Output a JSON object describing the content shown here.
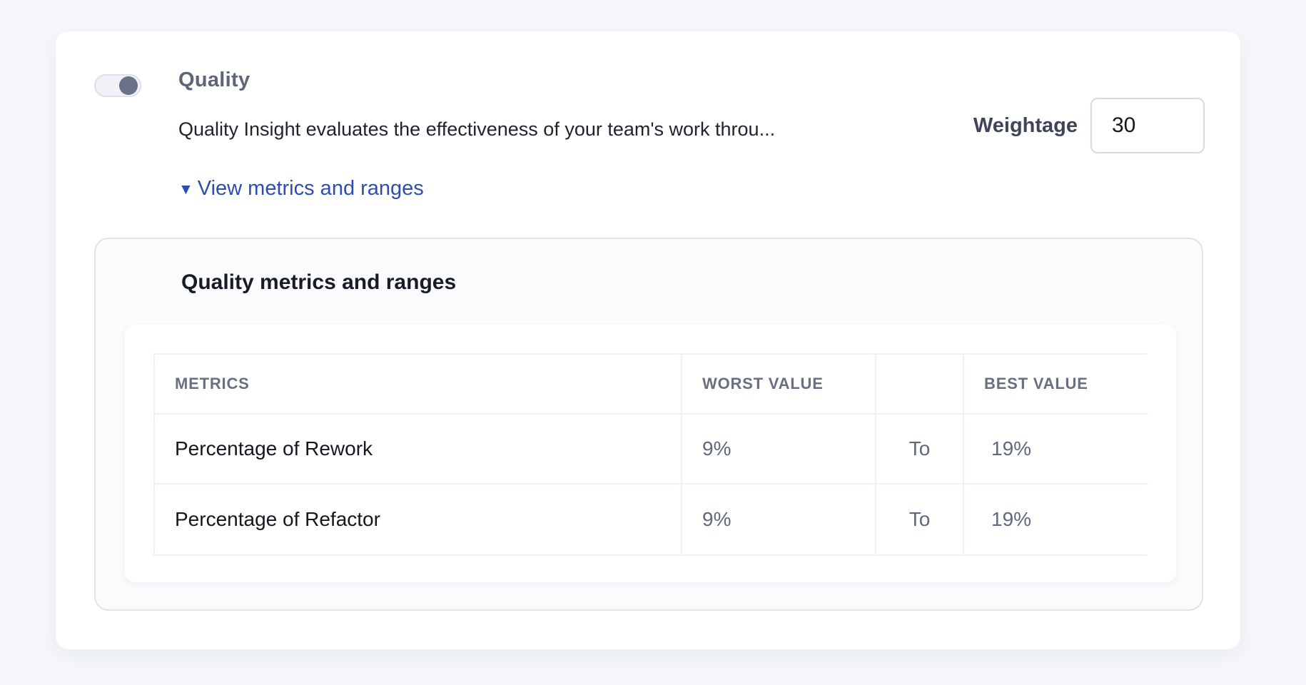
{
  "section": {
    "toggle": {
      "state": "on",
      "knob_color": "#6b7186"
    },
    "title": "Quality",
    "description": "Quality Insight evaluates the effectiveness of your team's work throu...",
    "weightage": {
      "label": "Weightage",
      "value": "30"
    },
    "metrics_link": {
      "icon": "▼",
      "label": "View metrics and ranges",
      "color": "#2c4eb0"
    }
  },
  "metrics_panel": {
    "title": "Quality metrics and ranges",
    "table": {
      "headers": [
        "METRICS",
        "WORST VALUE",
        "",
        "BEST VALUE"
      ],
      "rows": [
        {
          "metric": "Percentage of Rework",
          "worst": "9%",
          "to": "To",
          "best": "19%"
        },
        {
          "metric": "Percentage of Refactor",
          "worst": "9%",
          "to": "To",
          "best": "19%"
        }
      ]
    }
  }
}
